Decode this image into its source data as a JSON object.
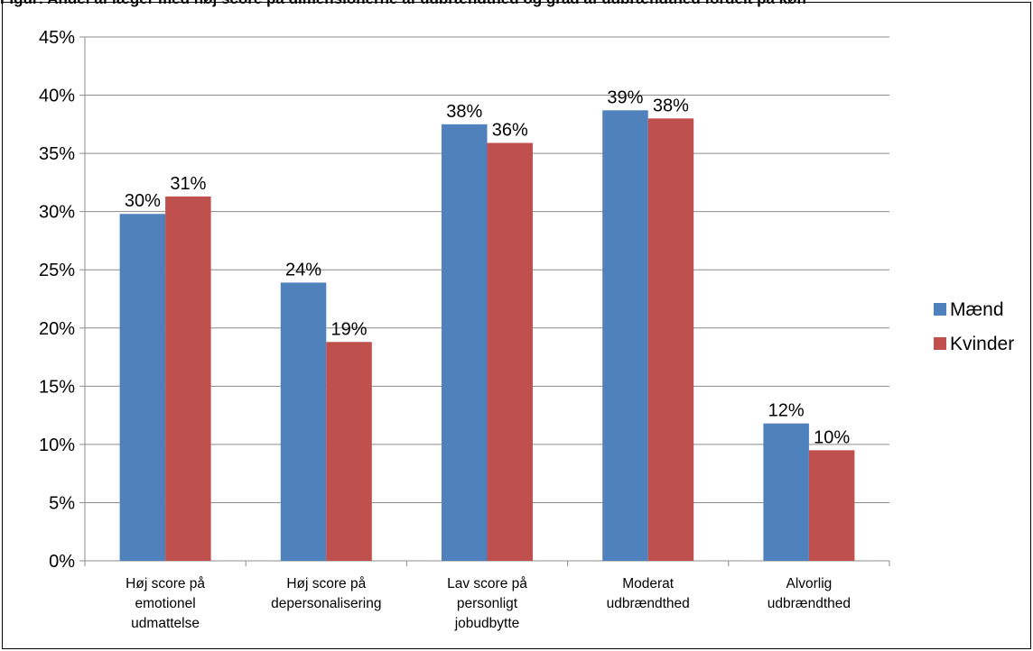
{
  "caption": "Figur: Andel af læger med høj score på dimensionerne af udbrændthed og grad af udbrændthed fordelt på køn",
  "chart_data": {
    "type": "bar",
    "categories": [
      [
        "Høj score på",
        "emotionel",
        "udmattelse"
      ],
      [
        "Høj score på",
        "depersonalisering"
      ],
      [
        "Lav score på",
        "personligt",
        "jobudbytte"
      ],
      [
        "Moderat",
        "udbrændthed"
      ],
      [
        "Alvorlig",
        "udbrændthed"
      ]
    ],
    "series": [
      {
        "name": "Mænd",
        "color": "#4F81BD",
        "values": [
          29.8,
          23.9,
          37.5,
          38.7,
          11.8
        ],
        "labels": [
          "30%",
          "24%",
          "38%",
          "39%",
          "12%"
        ]
      },
      {
        "name": "Kvinder",
        "color": "#C0504D",
        "values": [
          31.3,
          18.8,
          35.9,
          38.0,
          9.5
        ],
        "labels": [
          "31%",
          "19%",
          "36%",
          "38%",
          "10%"
        ]
      }
    ],
    "yticks": [
      "0%",
      "5%",
      "10%",
      "15%",
      "20%",
      "25%",
      "30%",
      "35%",
      "40%",
      "45%"
    ],
    "ylim": [
      0,
      45
    ],
    "grid": true,
    "legend": "right"
  }
}
